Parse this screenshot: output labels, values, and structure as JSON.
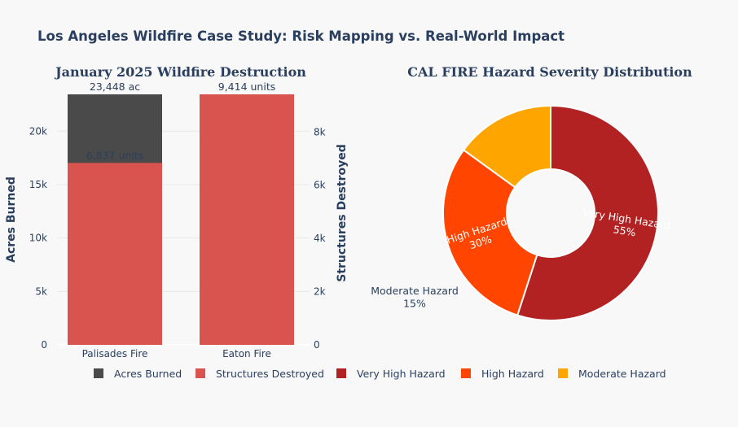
{
  "page": {
    "title": "Los Angeles Wildfire Case Study: Risk Mapping vs. Real-World Impact"
  },
  "chart_data": [
    {
      "type": "bar",
      "title": "January 2025 Wildfire Destruction",
      "categories": [
        "Palisades Fire",
        "Eaton Fire"
      ],
      "ylabel": "Acres Burned",
      "y2label": "Structures Destroyed",
      "ylim": [
        0,
        23448
      ],
      "y2lim": [
        0,
        9414
      ],
      "yticks": [
        0,
        5000,
        10000,
        15000,
        20000
      ],
      "ytick_labels": [
        "0",
        "5k",
        "10k",
        "15k",
        "20k"
      ],
      "y2ticks": [
        0,
        2000,
        4000,
        6000,
        8000
      ],
      "y2tick_labels": [
        "0",
        "2k",
        "4k",
        "6k",
        "8k"
      ],
      "series": [
        {
          "name": "Acres Burned",
          "axis": "y",
          "color": "#4a4a4a",
          "values": [
            23448,
            null
          ],
          "labels": [
            "23,448 ac",
            ""
          ]
        },
        {
          "name": "Structures Destroyed",
          "axis": "y2",
          "color": "#d9534f",
          "values": [
            6837,
            9414
          ],
          "labels": [
            "6,837 units",
            "9,414 units"
          ]
        }
      ]
    },
    {
      "type": "pie",
      "title": "CAL FIRE Hazard Severity Distribution",
      "hole": true,
      "slices": [
        {
          "label": "Very High Hazard",
          "value": 55,
          "text": "55%",
          "color": "#b22222"
        },
        {
          "label": "High Hazard",
          "value": 30,
          "text": "30%",
          "color": "#ff4500"
        },
        {
          "label": "Moderate Hazard",
          "value": 15,
          "text": "15%",
          "color": "#ffa500"
        }
      ]
    }
  ],
  "legend": {
    "position": "bottom",
    "items": [
      {
        "label": "Acres Burned",
        "color": "#4a4a4a"
      },
      {
        "label": "Structures Destroyed",
        "color": "#d9534f"
      },
      {
        "label": "Very High Hazard",
        "color": "#b22222"
      },
      {
        "label": "High Hazard",
        "color": "#ff4500"
      },
      {
        "label": "Moderate Hazard",
        "color": "#ffa500"
      }
    ]
  }
}
